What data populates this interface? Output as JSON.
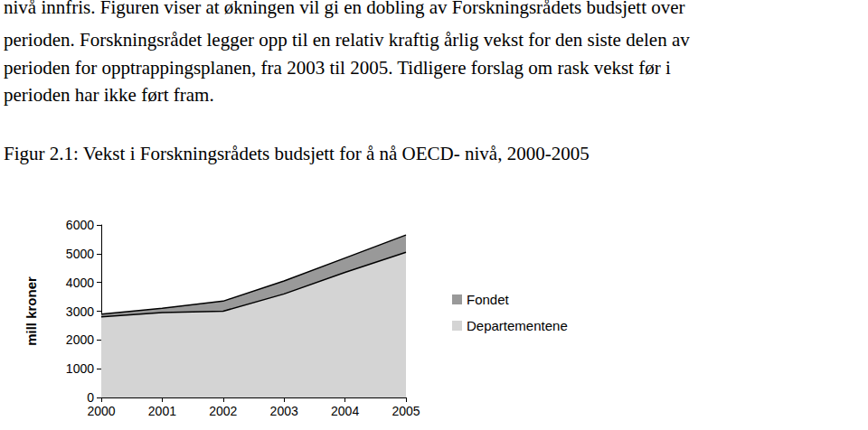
{
  "paragraph_lines": [
    "nivå innfris. Figuren viser at økningen vil gi en dobling av Forskningsrådets budsjett over",
    "perioden. Forskningsrådet legger opp til en relativ kraftig årlig vekst for den siste delen av",
    "perioden for opptrappingsplanen, fra 2003 til 2005. Tidligere forslag om rask vekst før i",
    "perioden har ikke ført fram."
  ],
  "caption": "Figur 2.1: Vekst i Forskningsrådets budsjett for å nå OECD- nivå, 2000-2005",
  "chart_data": {
    "type": "area",
    "stacked": true,
    "y_label": "mill kroner",
    "categories": [
      "2000",
      "2001",
      "2002",
      "2003",
      "2004",
      "2005"
    ],
    "series": [
      {
        "name": "Departementene",
        "color": "#d4d4d4",
        "values": [
          2800,
          2950,
          3000,
          3600,
          4350,
          5050
        ]
      },
      {
        "name": "Fondet",
        "color": "#999999",
        "values": [
          100,
          150,
          350,
          450,
          500,
          600
        ]
      }
    ],
    "ylim": [
      0,
      6000
    ],
    "yticks": [
      0,
      1000,
      2000,
      3000,
      4000,
      5000,
      6000
    ],
    "grid": false,
    "legend": "right"
  }
}
